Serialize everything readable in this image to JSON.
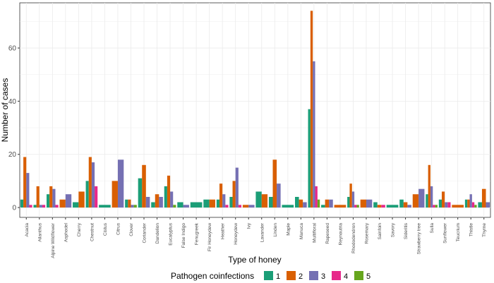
{
  "chart_data": {
    "type": "bar",
    "title": "",
    "xlabel": "Type of honey",
    "ylabel": "Number of cases",
    "ylim": [
      -3.7,
      77
    ],
    "yticks": [
      0,
      20,
      40,
      60
    ],
    "grid": true,
    "legend_position": "bottom",
    "legend_title": "Pathogen coinfections",
    "categories": [
      "Acacia",
      "Ailanthus",
      "Alpine Wildflower",
      "Asphodel",
      "Cherry",
      "Chestnut",
      "Cistus",
      "Citrus",
      "Clover",
      "Coriander",
      "Dandelion",
      "Eucalyptus",
      "False Indigo",
      "Fenugreek",
      "Fir Honeydew",
      "Heather",
      "Honeydew",
      "Ivy",
      "Lavander",
      "Linden",
      "Maple",
      "Manuca",
      "Multifloral",
      "Rapeseed",
      "Reynoutria",
      "Rhododendron",
      "Rosemary",
      "Sainfoin",
      "Savory",
      "Sideritis",
      "Strawberry tree",
      "Sulla",
      "Sunflower",
      "Teucrium",
      "Thistle",
      "Thyme"
    ],
    "series": [
      {
        "name": "1",
        "color": "#1b9e77",
        "values": [
          3,
          1,
          5,
          null,
          2,
          10,
          1,
          null,
          3,
          11,
          2,
          8,
          2,
          2,
          3,
          3,
          4,
          null,
          6,
          4,
          1,
          4,
          37,
          1,
          null,
          4,
          null,
          2,
          1,
          3,
          null,
          5,
          3,
          null,
          3,
          2
        ]
      },
      {
        "name": "2",
        "color": "#d95f02",
        "values": [
          19,
          8,
          8,
          3,
          6,
          19,
          null,
          10,
          3,
          16,
          5,
          12,
          null,
          null,
          3,
          9,
          10,
          1,
          5,
          18,
          null,
          3,
          74,
          3,
          1,
          9,
          3,
          1,
          null,
          2,
          5,
          16,
          6,
          1,
          3,
          7
        ]
      },
      {
        "name": "3",
        "color": "#7570b3",
        "values": [
          13,
          1,
          7,
          5,
          null,
          17,
          null,
          18,
          1,
          4,
          4,
          6,
          1,
          null,
          null,
          5,
          15,
          1,
          null,
          9,
          null,
          2,
          55,
          3,
          null,
          6,
          3,
          null,
          null,
          1,
          7,
          8,
          2,
          null,
          5,
          2
        ]
      },
      {
        "name": "4",
        "color": "#e7298a",
        "values": [
          1,
          1,
          1,
          null,
          null,
          8,
          null,
          null,
          null,
          null,
          null,
          null,
          null,
          null,
          null,
          1,
          1,
          null,
          null,
          null,
          null,
          null,
          8,
          null,
          null,
          1,
          null,
          1,
          null,
          null,
          null,
          1,
          2,
          null,
          2,
          null
        ]
      },
      {
        "name": "5",
        "color": "#66a61e",
        "values": [
          null,
          null,
          null,
          null,
          null,
          null,
          null,
          null,
          1,
          null,
          null,
          1,
          null,
          null,
          null,
          null,
          null,
          null,
          null,
          null,
          null,
          null,
          3,
          null,
          null,
          1,
          null,
          null,
          null,
          null,
          null,
          1,
          null,
          null,
          1,
          null
        ]
      }
    ]
  }
}
